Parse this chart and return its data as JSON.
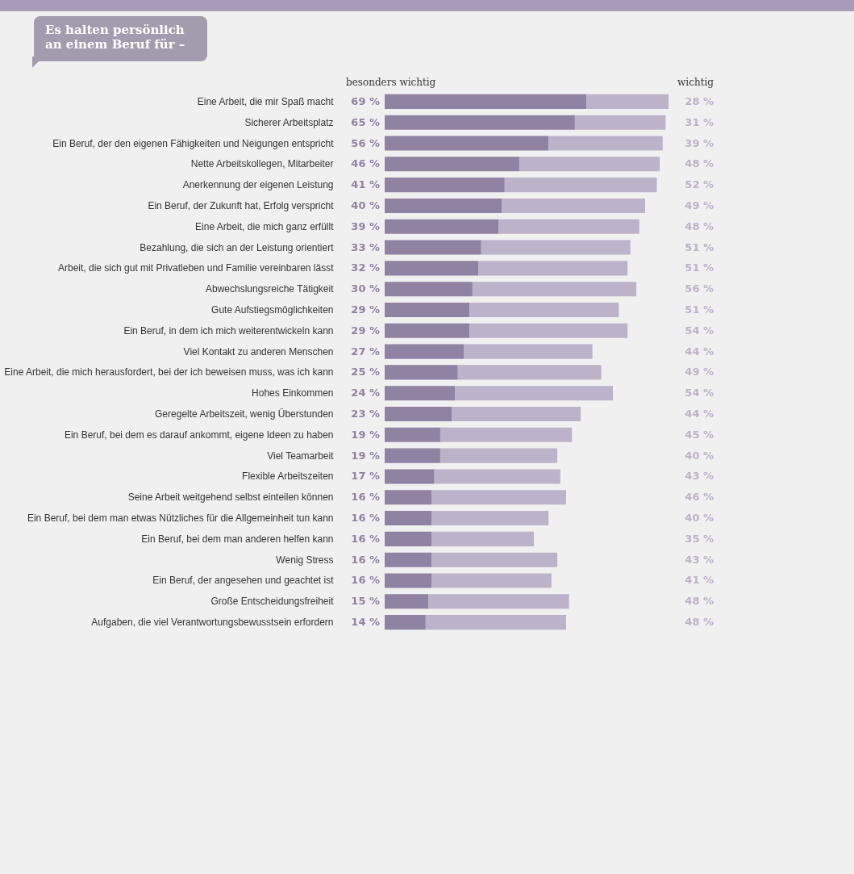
{
  "chart_data": {
    "type": "bar",
    "orientation": "horizontal",
    "stacked": true,
    "title": "Es halten persönlich an einem Beruf für –",
    "categories": [
      "Eine Arbeit, die mir Spaß macht",
      "Sicherer Arbeitsplatz",
      "Ein Beruf, der den eigenen Fähigkeiten und Neigungen entspricht",
      "Nette Arbeitskollegen, Mitarbeiter",
      "Anerkennung der eigenen Leistung",
      "Ein Beruf, der Zukunft hat, Erfolg verspricht",
      "Eine Arbeit, die mich ganz erfüllt",
      "Bezahlung, die sich an der Leistung orientiert",
      "Arbeit, die sich gut mit Privatleben und Familie vereinbaren lässt",
      "Abwechslungsreiche Tätigkeit",
      "Gute Aufstiegsmöglichkeiten",
      "Ein Beruf, in dem ich mich weiterentwickeln kann",
      "Viel Kontakt zu anderen Menschen",
      "Eine Arbeit, die mich herausfordert, bei der ich beweisen muss, was ich kann",
      "Hohes Einkommen",
      "Geregelte Arbeitszeit, wenig Überstunden",
      "Ein Beruf, bei dem es darauf ankommt, eigene Ideen zu haben",
      "Viel Teamarbeit",
      "Flexible Arbeitszeiten",
      "Seine Arbeit weitgehend selbst einteilen können",
      "Ein Beruf, bei dem man etwas Nützliches für die Allgemeinheit tun kann",
      "Ein Beruf, bei dem man anderen helfen kann",
      "Wenig Stress",
      "Ein Beruf, der angesehen und geachtet ist",
      "Große Entscheidungsfreiheit",
      "Aufgaben, die viel Verantwortungsbewusstsein erfordern"
    ],
    "series": [
      {
        "name": "besonders wichtig",
        "color": "#8f82a3",
        "values": [
          69,
          65,
          56,
          46,
          41,
          40,
          39,
          33,
          32,
          30,
          29,
          29,
          27,
          25,
          24,
          23,
          19,
          19,
          17,
          16,
          16,
          16,
          16,
          16,
          15,
          14
        ],
        "value_labels": [
          "69 %",
          "65 %",
          "56 %",
          "46 %",
          "41 %",
          "40 %",
          "39 %",
          "33 %",
          "32 %",
          "30 %",
          "29 %",
          "29 %",
          "27 %",
          "25 %",
          "24 %",
          "23 %",
          "19 %",
          "19 %",
          "17 %",
          "16 %",
          "16 %",
          "16 %",
          "16 %",
          "16 %",
          "15 %",
          "14 %"
        ]
      },
      {
        "name": "wichtig",
        "color": "#bcb2c9",
        "values": [
          28,
          31,
          39,
          48,
          52,
          49,
          48,
          51,
          51,
          56,
          51,
          54,
          44,
          49,
          54,
          44,
          45,
          40,
          43,
          46,
          40,
          35,
          43,
          41,
          48,
          48
        ],
        "value_labels": [
          "28 %",
          "31 %",
          "39 %",
          "48 %",
          "52 %",
          "49 %",
          "48 %",
          "51 %",
          "51 %",
          "56 %",
          "51 %",
          "54 %",
          "44 %",
          "49 %",
          "54 %",
          "44 %",
          "45 %",
          "40 %",
          "43 %",
          "46 %",
          "40 %",
          "35 %",
          "43 %",
          "41 %",
          "48 %",
          "48 %"
        ]
      }
    ],
    "tick_labels": "y"
  }
}
